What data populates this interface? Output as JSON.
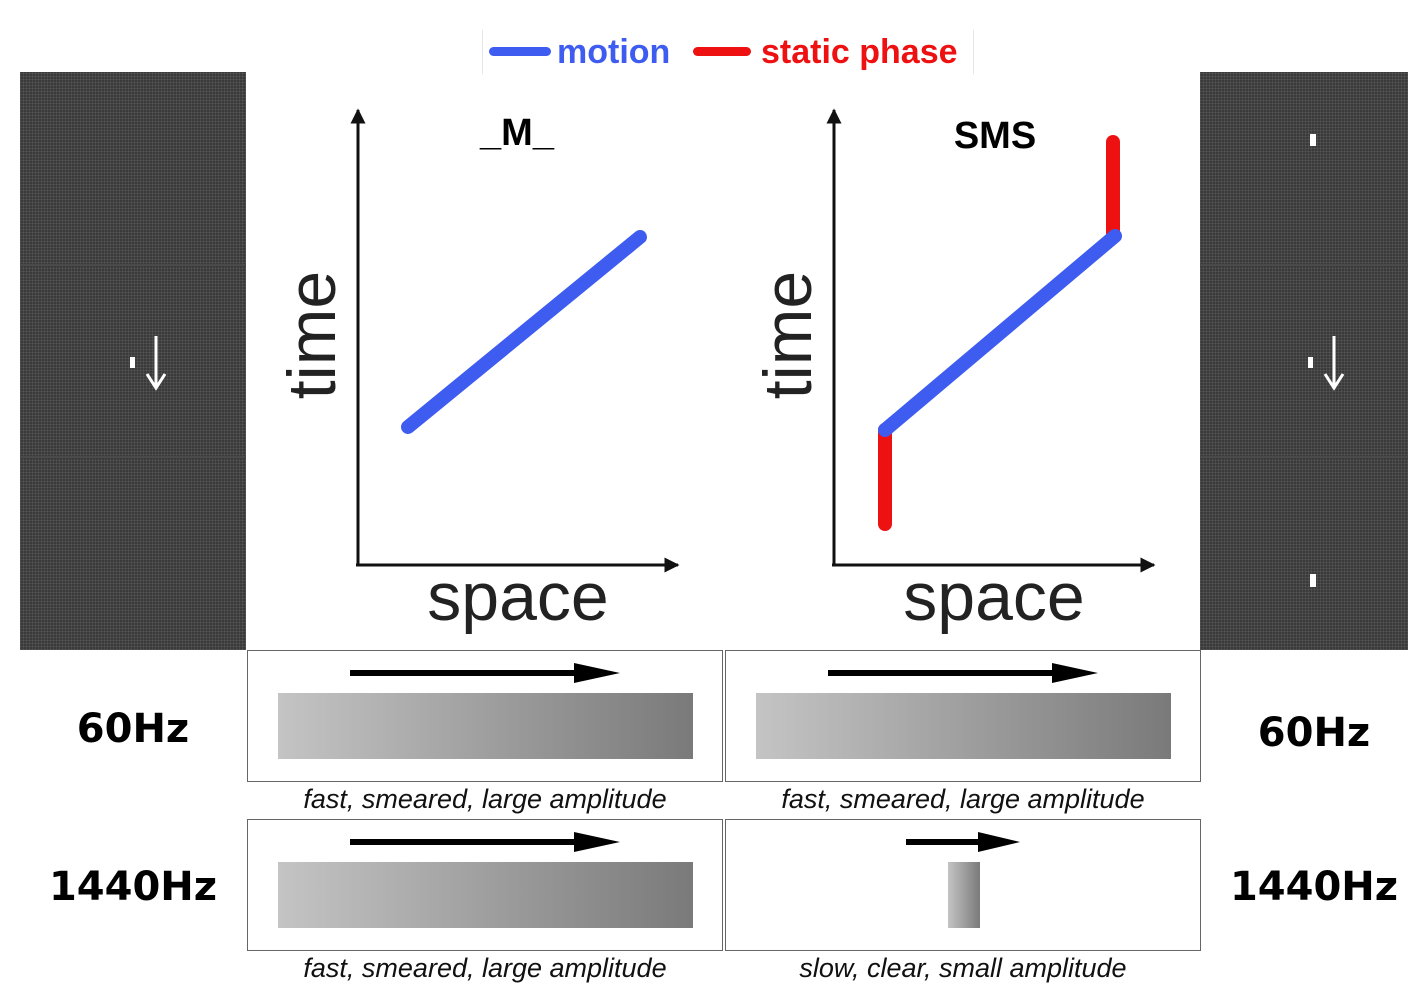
{
  "legend": {
    "motion_label": "motion",
    "static_label": "static phase",
    "motion_color": "#3e5cf0",
    "static_color": "#ee1111"
  },
  "plots": [
    {
      "title": "_M_",
      "y_axis": "time",
      "x_axis": "space"
    },
    {
      "title": "SMS",
      "y_axis": "time",
      "x_axis": "space"
    }
  ],
  "rows": [
    {
      "left_label": "60Hz",
      "right_label": "60Hz",
      "captions": [
        "fast, smeared, large amplitude",
        "fast, smeared, large amplitude"
      ]
    },
    {
      "left_label": "1440Hz",
      "right_label": "1440Hz",
      "captions": [
        "fast, smeared, large amplitude",
        "slow, clear, small amplitude"
      ]
    }
  ],
  "icons": {
    "motion_arrow": "right-arrow-icon",
    "panel_arrow": "down-arrow-icon"
  }
}
